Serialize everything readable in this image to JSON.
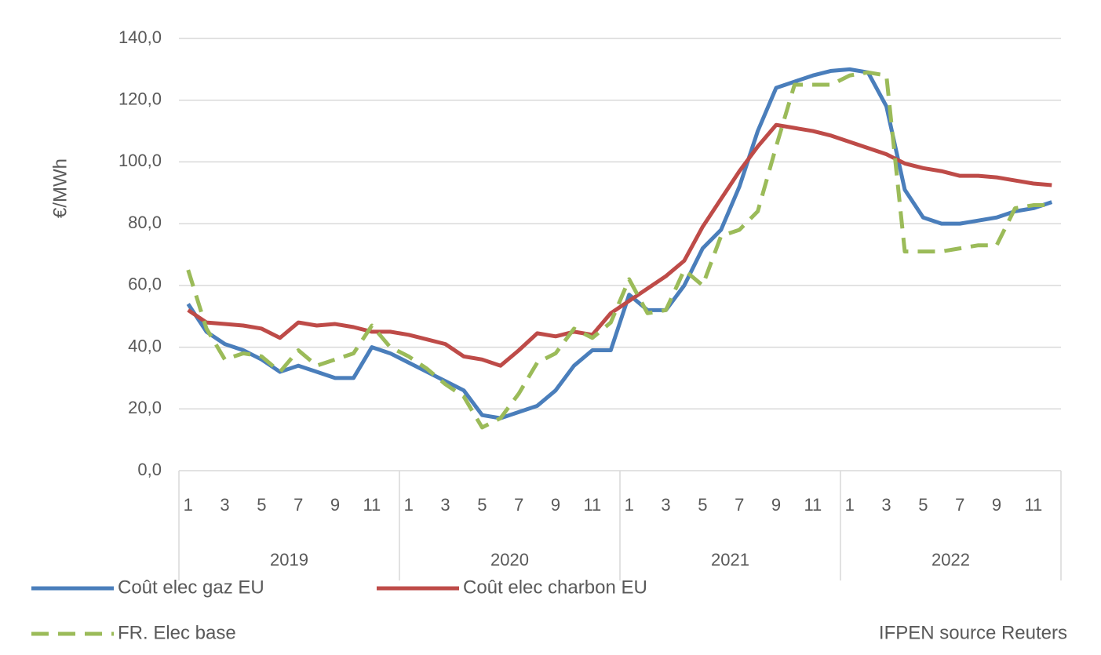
{
  "chart_data": {
    "type": "line",
    "y_label": "€/MWh",
    "source": "IFPEN source Reuters",
    "categories": [
      "1",
      null,
      "3",
      null,
      "5",
      null,
      "7",
      null,
      "9",
      null,
      "11",
      null,
      "1",
      null,
      "3",
      null,
      "5",
      null,
      "7",
      null,
      "9",
      null,
      "11",
      null,
      "1",
      null,
      "3",
      null,
      "5",
      null,
      "7",
      null,
      "9",
      null,
      "11",
      null,
      "1",
      null,
      "3",
      null,
      "5",
      null,
      "7",
      null,
      "9",
      null,
      "11",
      null
    ],
    "years": [
      "2019",
      "2020",
      "2021",
      "2022"
    ],
    "ylim": [
      0,
      140
    ],
    "yticks": [
      {
        "value": 0,
        "label": "0,0"
      },
      {
        "value": 20,
        "label": "20,0"
      },
      {
        "value": 40,
        "label": "40,0"
      },
      {
        "value": 60,
        "label": "60,0"
      },
      {
        "value": 80,
        "label": "80,0"
      },
      {
        "value": 100,
        "label": "100,0"
      },
      {
        "value": 120,
        "label": "120,0"
      },
      {
        "value": 140,
        "label": "140,0"
      }
    ],
    "grid": true,
    "series": [
      {
        "name": "Coût elec gaz EU",
        "color": "#4a7ebb",
        "dash": false,
        "values": [
          54,
          45,
          41,
          39,
          36,
          32,
          34,
          32,
          30,
          30,
          40,
          38,
          35,
          32,
          29,
          26,
          18,
          17,
          19,
          21,
          26,
          34,
          39,
          39,
          57,
          52,
          52,
          60,
          72,
          78,
          92,
          110,
          124,
          126,
          128,
          129.5,
          130,
          129,
          118,
          91,
          82,
          80,
          80,
          81,
          82,
          84,
          85,
          87
        ]
      },
      {
        "name": "Coût elec charbon EU",
        "color": "#be4b48",
        "dash": false,
        "values": [
          52,
          48,
          47.5,
          47,
          46,
          43,
          48,
          47,
          47.5,
          46.5,
          45,
          45,
          44,
          42.5,
          41,
          37,
          36,
          34,
          39,
          44.5,
          43.5,
          45,
          44,
          51,
          55,
          59,
          63,
          68,
          79,
          88,
          97,
          105,
          112,
          111,
          110,
          108.5,
          106.5,
          104.5,
          102.5,
          99.5,
          98,
          97,
          95.5,
          95.5,
          95,
          94,
          93,
          92.5
        ]
      },
      {
        "name": "FR. Elec  base",
        "color": "#9bbb59",
        "dash": true,
        "values": [
          65,
          46,
          36,
          38,
          37,
          32,
          39,
          34,
          36,
          38,
          47,
          40,
          37,
          33,
          28,
          24,
          14,
          17,
          25,
          35,
          38,
          46,
          43,
          48,
          62,
          51,
          52,
          65,
          60,
          76,
          78,
          84,
          105,
          125,
          125,
          125,
          128,
          129,
          128,
          71,
          71,
          71,
          72,
          73,
          73,
          85,
          86,
          86
        ]
      }
    ]
  }
}
